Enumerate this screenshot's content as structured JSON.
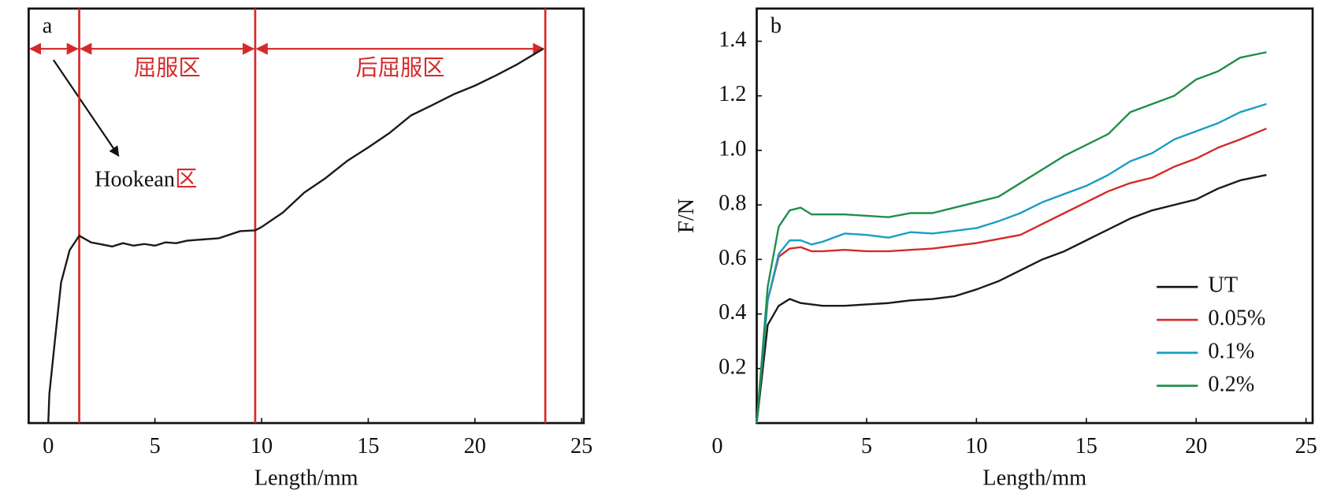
{
  "chart_data": [
    {
      "type": "line",
      "panel_label": "a",
      "xlabel": "Length/mm",
      "xlim": [
        -0.92,
        25.1
      ],
      "xticks": [
        0,
        5,
        10,
        15,
        20,
        25
      ],
      "ylim": [
        0,
        1
      ],
      "dividers": [
        1.45,
        9.7,
        23.3
      ],
      "divider_color": "#d42a2a",
      "region_labels": [
        "屈服区",
        "后屈服区"
      ],
      "hookean_label": [
        "Hookean",
        "区"
      ],
      "series": [
        {
          "color": "#1a1a1a",
          "x": [
            0,
            0.05,
            0.3,
            0.6,
            1,
            1.45,
            2,
            3,
            3.5,
            4,
            4.5,
            5,
            5.5,
            6,
            6.5,
            7,
            8,
            9,
            9.7,
            10,
            11,
            12,
            13,
            14,
            15,
            16,
            17,
            18,
            19,
            20,
            21,
            22,
            23.2
          ],
          "values": [
            0,
            0.07,
            0.194,
            0.339,
            0.417,
            0.452,
            0.436,
            0.426,
            0.434,
            0.428,
            0.432,
            0.428,
            0.436,
            0.434,
            0.44,
            0.442,
            0.446,
            0.463,
            0.465,
            0.473,
            0.508,
            0.556,
            0.591,
            0.632,
            0.665,
            0.7,
            0.742,
            0.767,
            0.793,
            0.814,
            0.839,
            0.866,
            0.903
          ]
        }
      ]
    },
    {
      "type": "line",
      "panel_label": "b",
      "xlabel": "Length/mm",
      "ylabel": "F/N",
      "xlim": [
        0,
        25.3
      ],
      "xticks": [
        0,
        5,
        10,
        15,
        20,
        25
      ],
      "ylim": [
        0,
        1.52
      ],
      "yticks": [
        0.2,
        0.4,
        0.6,
        0.8,
        {
          "value": 1,
          "label": "1.0"
        },
        1.2,
        1.4
      ],
      "legend": "lower right",
      "x": [
        0,
        0.5,
        1,
        1.5,
        2,
        2.5,
        3,
        4,
        5,
        6,
        7,
        8,
        9,
        10,
        11,
        12,
        13,
        14,
        15,
        16,
        17,
        18,
        19,
        20,
        21,
        22,
        23.2
      ],
      "series": [
        {
          "name": "UT",
          "color": "#1a1a1a",
          "values": [
            0,
            0.36,
            0.43,
            0.455,
            0.44,
            0.435,
            0.43,
            0.43,
            0.435,
            0.44,
            0.45,
            0.455,
            0.465,
            0.49,
            0.52,
            0.56,
            0.6,
            0.63,
            0.67,
            0.71,
            0.75,
            0.78,
            0.8,
            0.82,
            0.86,
            0.89,
            0.91
          ]
        },
        {
          "name": "0.05%",
          "color": "#d42a2a",
          "values": [
            0,
            0.45,
            0.61,
            0.64,
            0.645,
            0.63,
            0.63,
            0.635,
            0.63,
            0.63,
            0.635,
            0.64,
            0.65,
            0.66,
            0.675,
            0.69,
            0.73,
            0.77,
            0.81,
            0.85,
            0.88,
            0.9,
            0.94,
            0.97,
            1.01,
            1.04,
            1.08
          ]
        },
        {
          "name": "0.1%",
          "color": "#1a9ec4",
          "values": [
            0,
            0.45,
            0.62,
            0.67,
            0.67,
            0.655,
            0.665,
            0.695,
            0.69,
            0.68,
            0.7,
            0.695,
            0.705,
            0.715,
            0.74,
            0.77,
            0.81,
            0.84,
            0.87,
            0.91,
            0.96,
            0.99,
            1.04,
            1.07,
            1.1,
            1.14,
            1.17
          ]
        },
        {
          "name": "0.2%",
          "color": "#1f8f4a",
          "values": [
            0,
            0.5,
            0.72,
            0.78,
            0.79,
            0.765,
            0.765,
            0.765,
            0.76,
            0.755,
            0.77,
            0.77,
            0.79,
            0.81,
            0.83,
            0.88,
            0.93,
            0.98,
            1.02,
            1.06,
            1.14,
            1.17,
            1.2,
            1.26,
            1.29,
            1.34,
            1.36
          ]
        }
      ]
    }
  ]
}
